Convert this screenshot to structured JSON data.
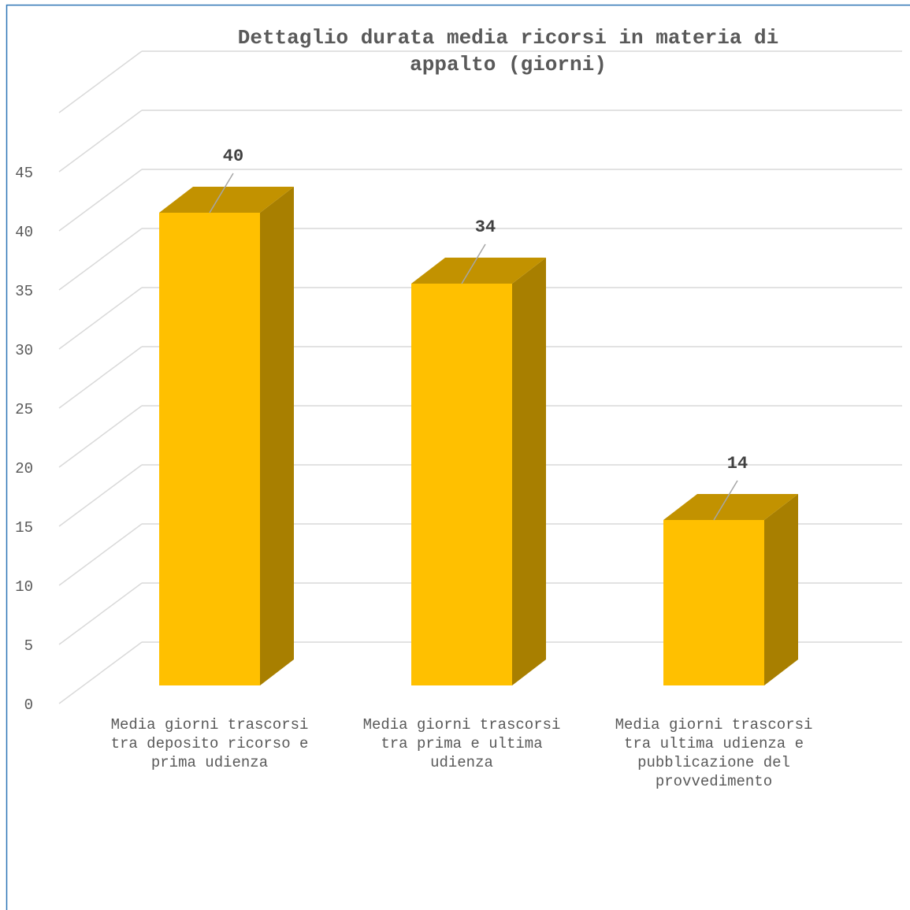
{
  "chart_data": {
    "type": "bar3d",
    "title": "Dettaglio durata media ricorsi in materia di appalto (giorni)",
    "categories": [
      "Media giorni trascorsi tra deposito ricorso e prima udienza",
      "Media giorni trascorsi tra prima e ultima udienza",
      "Media giorni trascorsi tra ultima udienza e pubblicazione del provvedimento"
    ],
    "values": [
      40,
      34,
      14
    ],
    "color": "#ffc000",
    "ylim": [
      0,
      50
    ],
    "yticks": [
      0,
      5,
      10,
      15,
      20,
      25,
      30,
      35,
      40,
      45
    ],
    "grid": true
  }
}
